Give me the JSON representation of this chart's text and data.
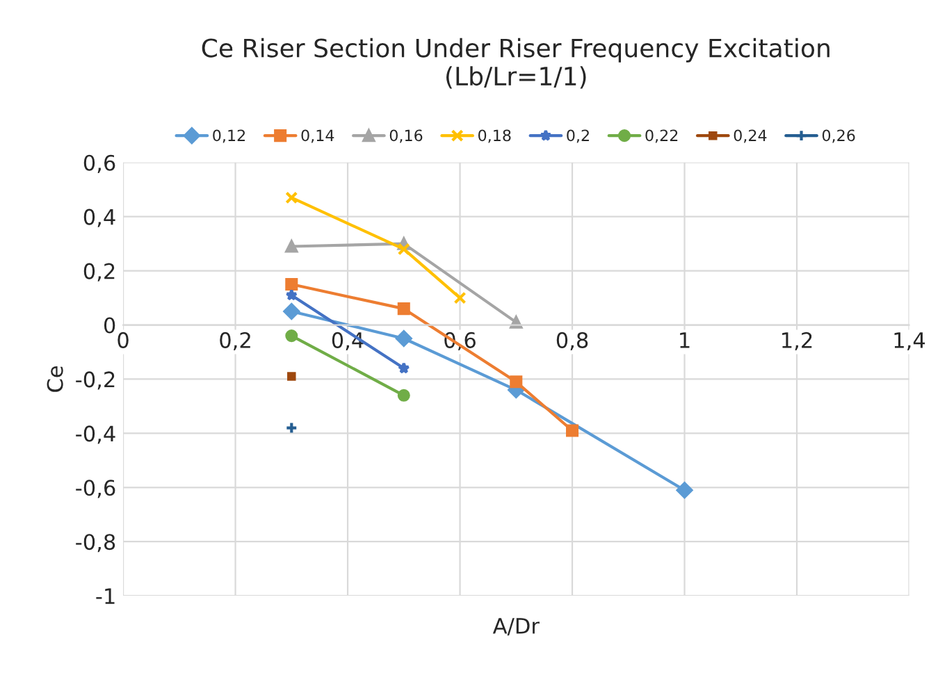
{
  "chart_data": {
    "type": "line",
    "title": "Ce Riser Section Under Riser Frequency Excitation\n(Lb/Lr=1/1)",
    "xlabel": "A/Dr",
    "ylabel": "Ce",
    "xlim": [
      0,
      1.4
    ],
    "ylim": [
      -1,
      0.6
    ],
    "xticks": [
      0,
      {
        "value": 0.2,
        "label": "0,2"
      },
      {
        "value": 0.4,
        "label": "0,4"
      },
      {
        "value": 0.6,
        "label": "0,6"
      },
      {
        "value": 0.8,
        "label": "0,8"
      },
      1,
      {
        "value": 1.2,
        "label": "1,2"
      },
      {
        "value": 1.4,
        "label": "1,4"
      }
    ],
    "yticks": [
      -1,
      {
        "value": -0.8,
        "label": "-0,8"
      },
      {
        "value": -0.6,
        "label": "-0,6"
      },
      {
        "value": -0.4,
        "label": "-0,4"
      },
      {
        "value": -0.2,
        "label": "-0,2"
      },
      0,
      {
        "value": 0.2,
        "label": "0,2"
      },
      {
        "value": 0.4,
        "label": "0,4"
      },
      {
        "value": 0.6,
        "label": "0,6"
      }
    ],
    "grid": true,
    "legend": "top",
    "line_style": "solid",
    "series": [
      {
        "name": "0,12",
        "color": "#5b9bd5",
        "marker": "diamond",
        "x": [
          0.3,
          0.5,
          0.7,
          1.0
        ],
        "values": [
          0.05,
          -0.05,
          -0.24,
          -0.61
        ]
      },
      {
        "name": "0,14",
        "color": "#ed7d31",
        "marker": "square",
        "x": [
          0.3,
          0.5,
          0.7,
          0.8
        ],
        "values": [
          0.15,
          0.06,
          -0.21,
          -0.39
        ]
      },
      {
        "name": "0,16",
        "color": "#a5a5a5",
        "marker": "triangle",
        "x": [
          0.3,
          0.5,
          0.7
        ],
        "values": [
          0.29,
          0.3,
          0.01
        ]
      },
      {
        "name": "0,18",
        "color": "#ffc000",
        "marker": "cross",
        "x": [
          0.3,
          0.5,
          0.6
        ],
        "values": [
          0.47,
          0.28,
          0.1
        ]
      },
      {
        "name": "0,2",
        "color": "#4472c4",
        "marker": "star",
        "x": [
          0.3,
          0.5
        ],
        "values": [
          0.11,
          -0.16
        ]
      },
      {
        "name": "0,22",
        "color": "#70ad47",
        "marker": "circle",
        "x": [
          0.3,
          0.5
        ],
        "values": [
          -0.04,
          -0.26
        ]
      },
      {
        "name": "0,24",
        "color": "#9e480e",
        "marker": "square",
        "x": [
          0.3
        ],
        "values": [
          -0.19
        ]
      },
      {
        "name": "0,26",
        "color": "#255e91",
        "marker": "plus",
        "x": [
          0.3
        ],
        "values": [
          -0.38
        ]
      }
    ]
  }
}
